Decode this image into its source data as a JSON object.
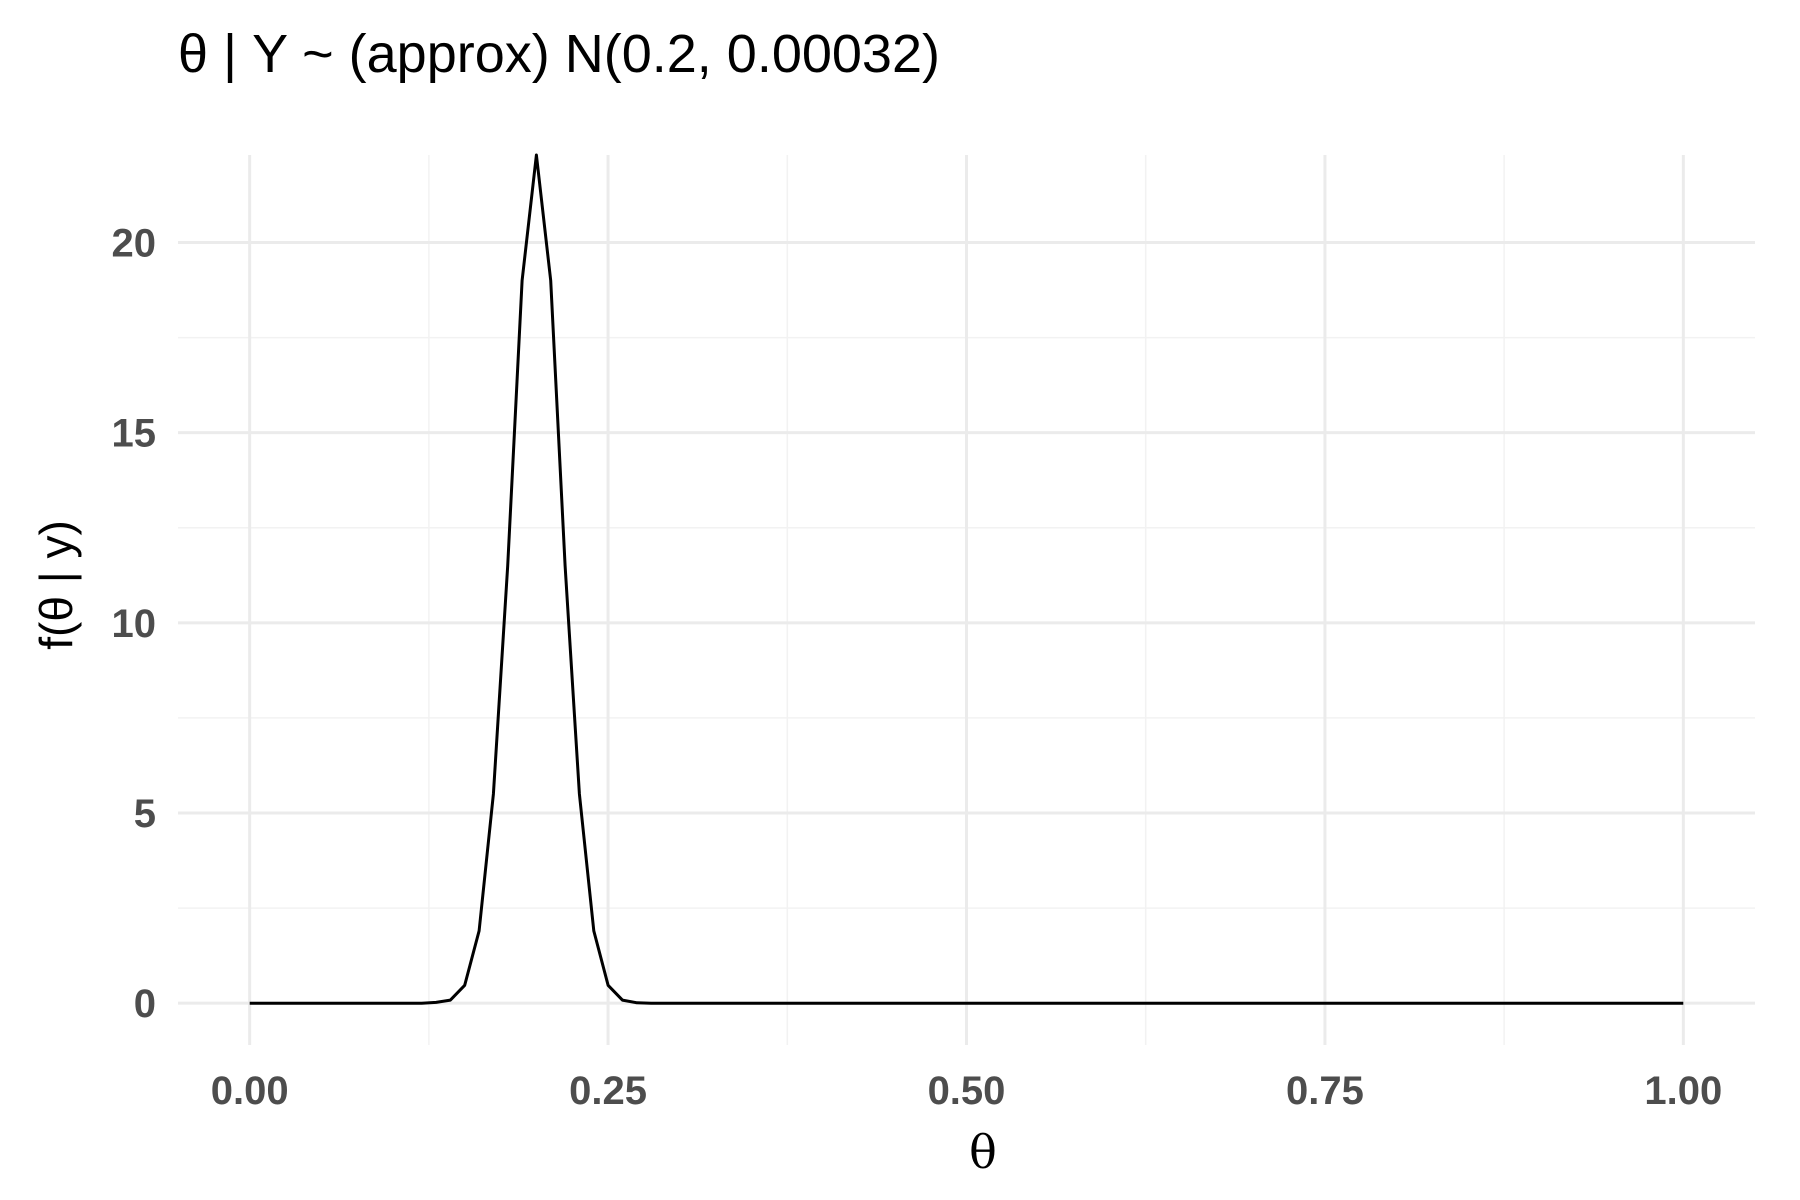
{
  "chart_data": {
    "type": "line",
    "title": "θ | Y ~ (approx) N(0.2, 0.00032)",
    "xlabel": "θ",
    "ylabel": "f(θ | y)",
    "xlim": [
      -0.05,
      1.05
    ],
    "ylim": [
      -1.1,
      22.3
    ],
    "x_ticks": [
      0,
      0.25,
      0.5,
      0.75,
      1
    ],
    "x_tick_labels": [
      "0.00",
      "0.25",
      "0.50",
      "0.75",
      "1.00"
    ],
    "y_ticks": [
      0,
      5,
      10,
      15,
      20
    ],
    "y_tick_labels": [
      "0",
      "5",
      "10",
      "15",
      "20"
    ],
    "grid": true,
    "legend": "none",
    "line_color": "#000000",
    "series": [
      {
        "x": [
          0,
          0.01,
          0.02,
          0.03,
          0.04,
          0.05,
          0.06,
          0.07,
          0.08,
          0.09,
          0.1,
          0.11,
          0.12,
          0.13,
          0.14,
          0.15,
          0.16,
          0.17,
          0.18,
          0.19,
          0.2,
          0.21,
          0.22,
          0.23,
          0.24,
          0.25,
          0.26,
          0.27,
          0.28,
          0.29,
          0.3,
          0.4,
          0.5,
          0.6,
          0.7,
          0.8,
          0.9,
          1.0
        ],
        "values": [
          0,
          0,
          0,
          0,
          0,
          0,
          0,
          0,
          0,
          0,
          0,
          0,
          0,
          0.02,
          0.08,
          0.47,
          1.9,
          5.5,
          11.5,
          19.0,
          22.3,
          19.0,
          11.5,
          5.5,
          1.9,
          0.47,
          0.08,
          0.01,
          0,
          0,
          0,
          0,
          0,
          0,
          0,
          0,
          0,
          0
        ]
      }
    ]
  }
}
